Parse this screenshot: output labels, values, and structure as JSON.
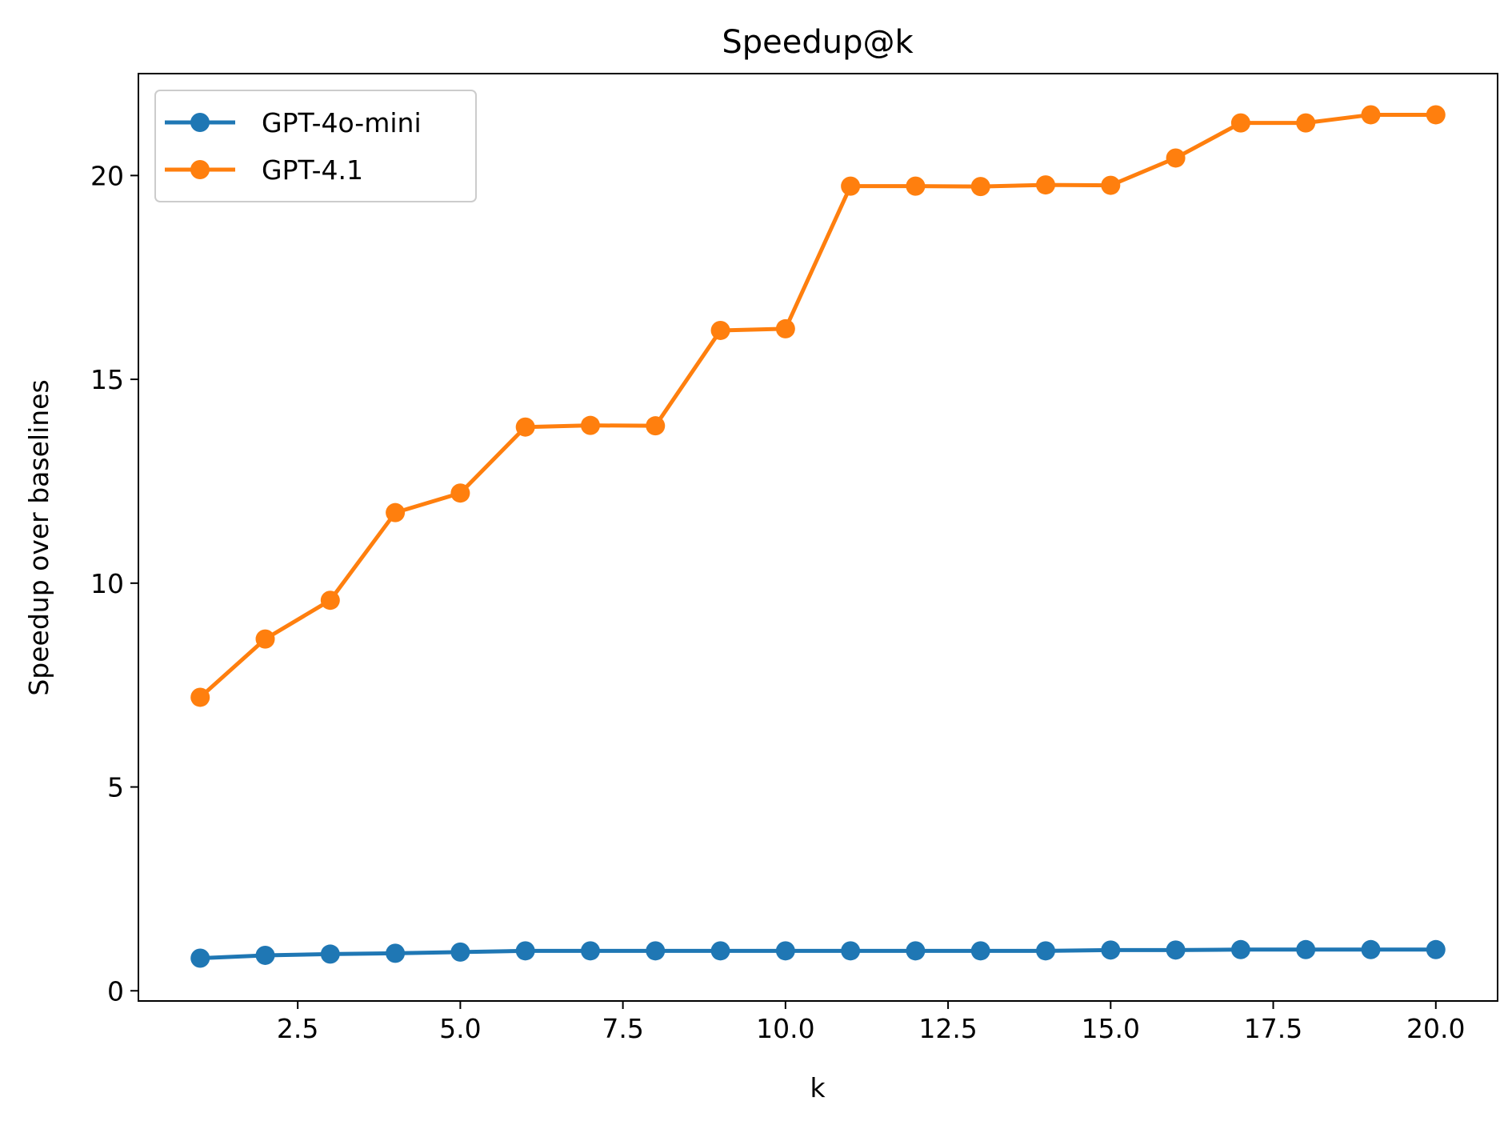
{
  "chart_data": {
    "type": "line",
    "title": "Speedup@k",
    "xlabel": "k",
    "ylabel": "Speedup over baselines",
    "xlim": [
      0.05,
      20.95
    ],
    "ylim": [
      -0.25,
      22.5
    ],
    "xticks": [
      2.5,
      5.0,
      7.5,
      10.0,
      12.5,
      15.0,
      17.5,
      20.0
    ],
    "xtick_labels": [
      "2.5",
      "5.0",
      "7.5",
      "10.0",
      "12.5",
      "15.0",
      "17.5",
      "20.0"
    ],
    "yticks": [
      0,
      5,
      10,
      15,
      20
    ],
    "ytick_labels": [
      "0",
      "5",
      "10",
      "15",
      "20"
    ],
    "grid": false,
    "legend_position": "top-left",
    "x": [
      1,
      2,
      3,
      4,
      5,
      6,
      7,
      8,
      9,
      10,
      11,
      12,
      13,
      14,
      15,
      16,
      17,
      18,
      19,
      20
    ],
    "series": [
      {
        "name": "GPT-4o-mini",
        "color": "#1f77b4",
        "values": [
          0.8,
          0.87,
          0.9,
          0.92,
          0.95,
          0.98,
          0.98,
          0.98,
          0.98,
          0.98,
          0.98,
          0.98,
          0.98,
          0.98,
          1.0,
          1.0,
          1.01,
          1.01,
          1.01,
          1.01
        ]
      },
      {
        "name": "GPT-4.1",
        "color": "#ff7f0e",
        "values": [
          7.2,
          8.63,
          9.58,
          11.73,
          12.21,
          13.83,
          13.87,
          13.86,
          16.2,
          16.24,
          19.74,
          19.74,
          19.73,
          19.77,
          19.76,
          20.43,
          21.29,
          21.29,
          21.49,
          21.49
        ]
      }
    ]
  }
}
